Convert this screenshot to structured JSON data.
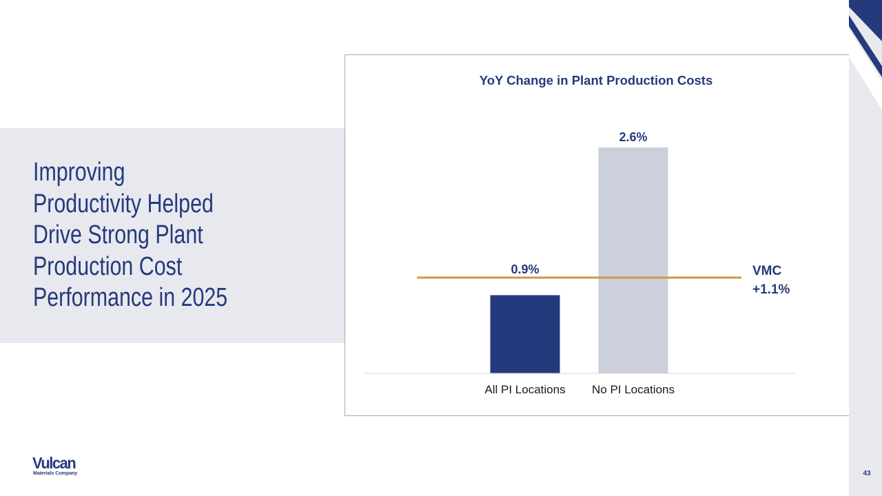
{
  "slide": {
    "title": "Improving\nProductivity Helped\nDrive Strong Plant\nProduction Cost\nPerformance in 2025",
    "page_number": "43"
  },
  "logo": {
    "wordmark": "Vulcan",
    "subtitle": "Materials Company"
  },
  "colors": {
    "brand_navy": "#253a7c",
    "band_gray": "#e8e9ef",
    "bar_gray": "#ccd0da",
    "reference_line": "#d4944a"
  },
  "chart_data": {
    "type": "bar",
    "title": "YoY Change in Plant Production Costs",
    "categories": [
      "All PI Locations",
      "No PI Locations"
    ],
    "values": [
      0.9,
      2.6
    ],
    "data_labels": [
      "0.9%",
      "2.6%"
    ],
    "bar_colors": [
      "#253a7c",
      "#ccd0da"
    ],
    "ylim": [
      0,
      2.6
    ],
    "grid": false,
    "legend": "none",
    "reference_line": {
      "value": 1.1,
      "label_line1": "VMC",
      "label_line2": "+1.1%",
      "color": "#d4944a"
    }
  }
}
